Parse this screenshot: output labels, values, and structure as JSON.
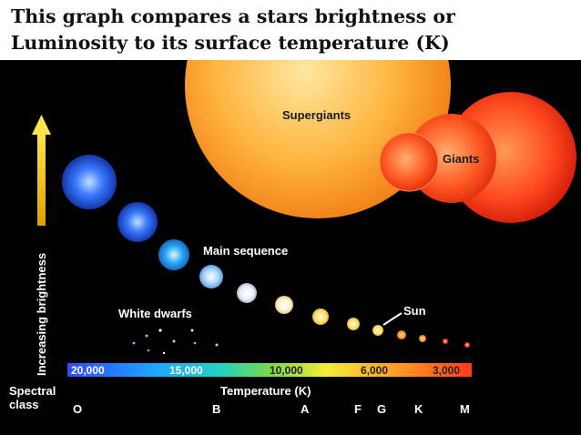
{
  "title": {
    "line1": "This graph compares a stars brightness or",
    "line2": "Luminosity to its surface temperature (K)"
  },
  "diagram": {
    "y_axis_label": "Increasing brightness",
    "x_axis_label": "Temperature (K)",
    "spectral_label": [
      "Spectral",
      "class"
    ],
    "temperature_ticks": [
      "20,000",
      "15,000",
      "10,000",
      "6,000",
      "3,000"
    ],
    "spectral_classes": [
      "O",
      "B",
      "A",
      "F",
      "G",
      "K",
      "M"
    ],
    "star_groups": {
      "supergiants": "Supergiants",
      "giants": "Giants",
      "main_sequence": "Main sequence",
      "white_dwarfs": "White dwarfs",
      "sun": "Sun"
    },
    "colors": {
      "hot": "#2f6bff",
      "cool": "#ff4a1a",
      "supergiant": "#ffb23a",
      "background": "#000000"
    }
  }
}
